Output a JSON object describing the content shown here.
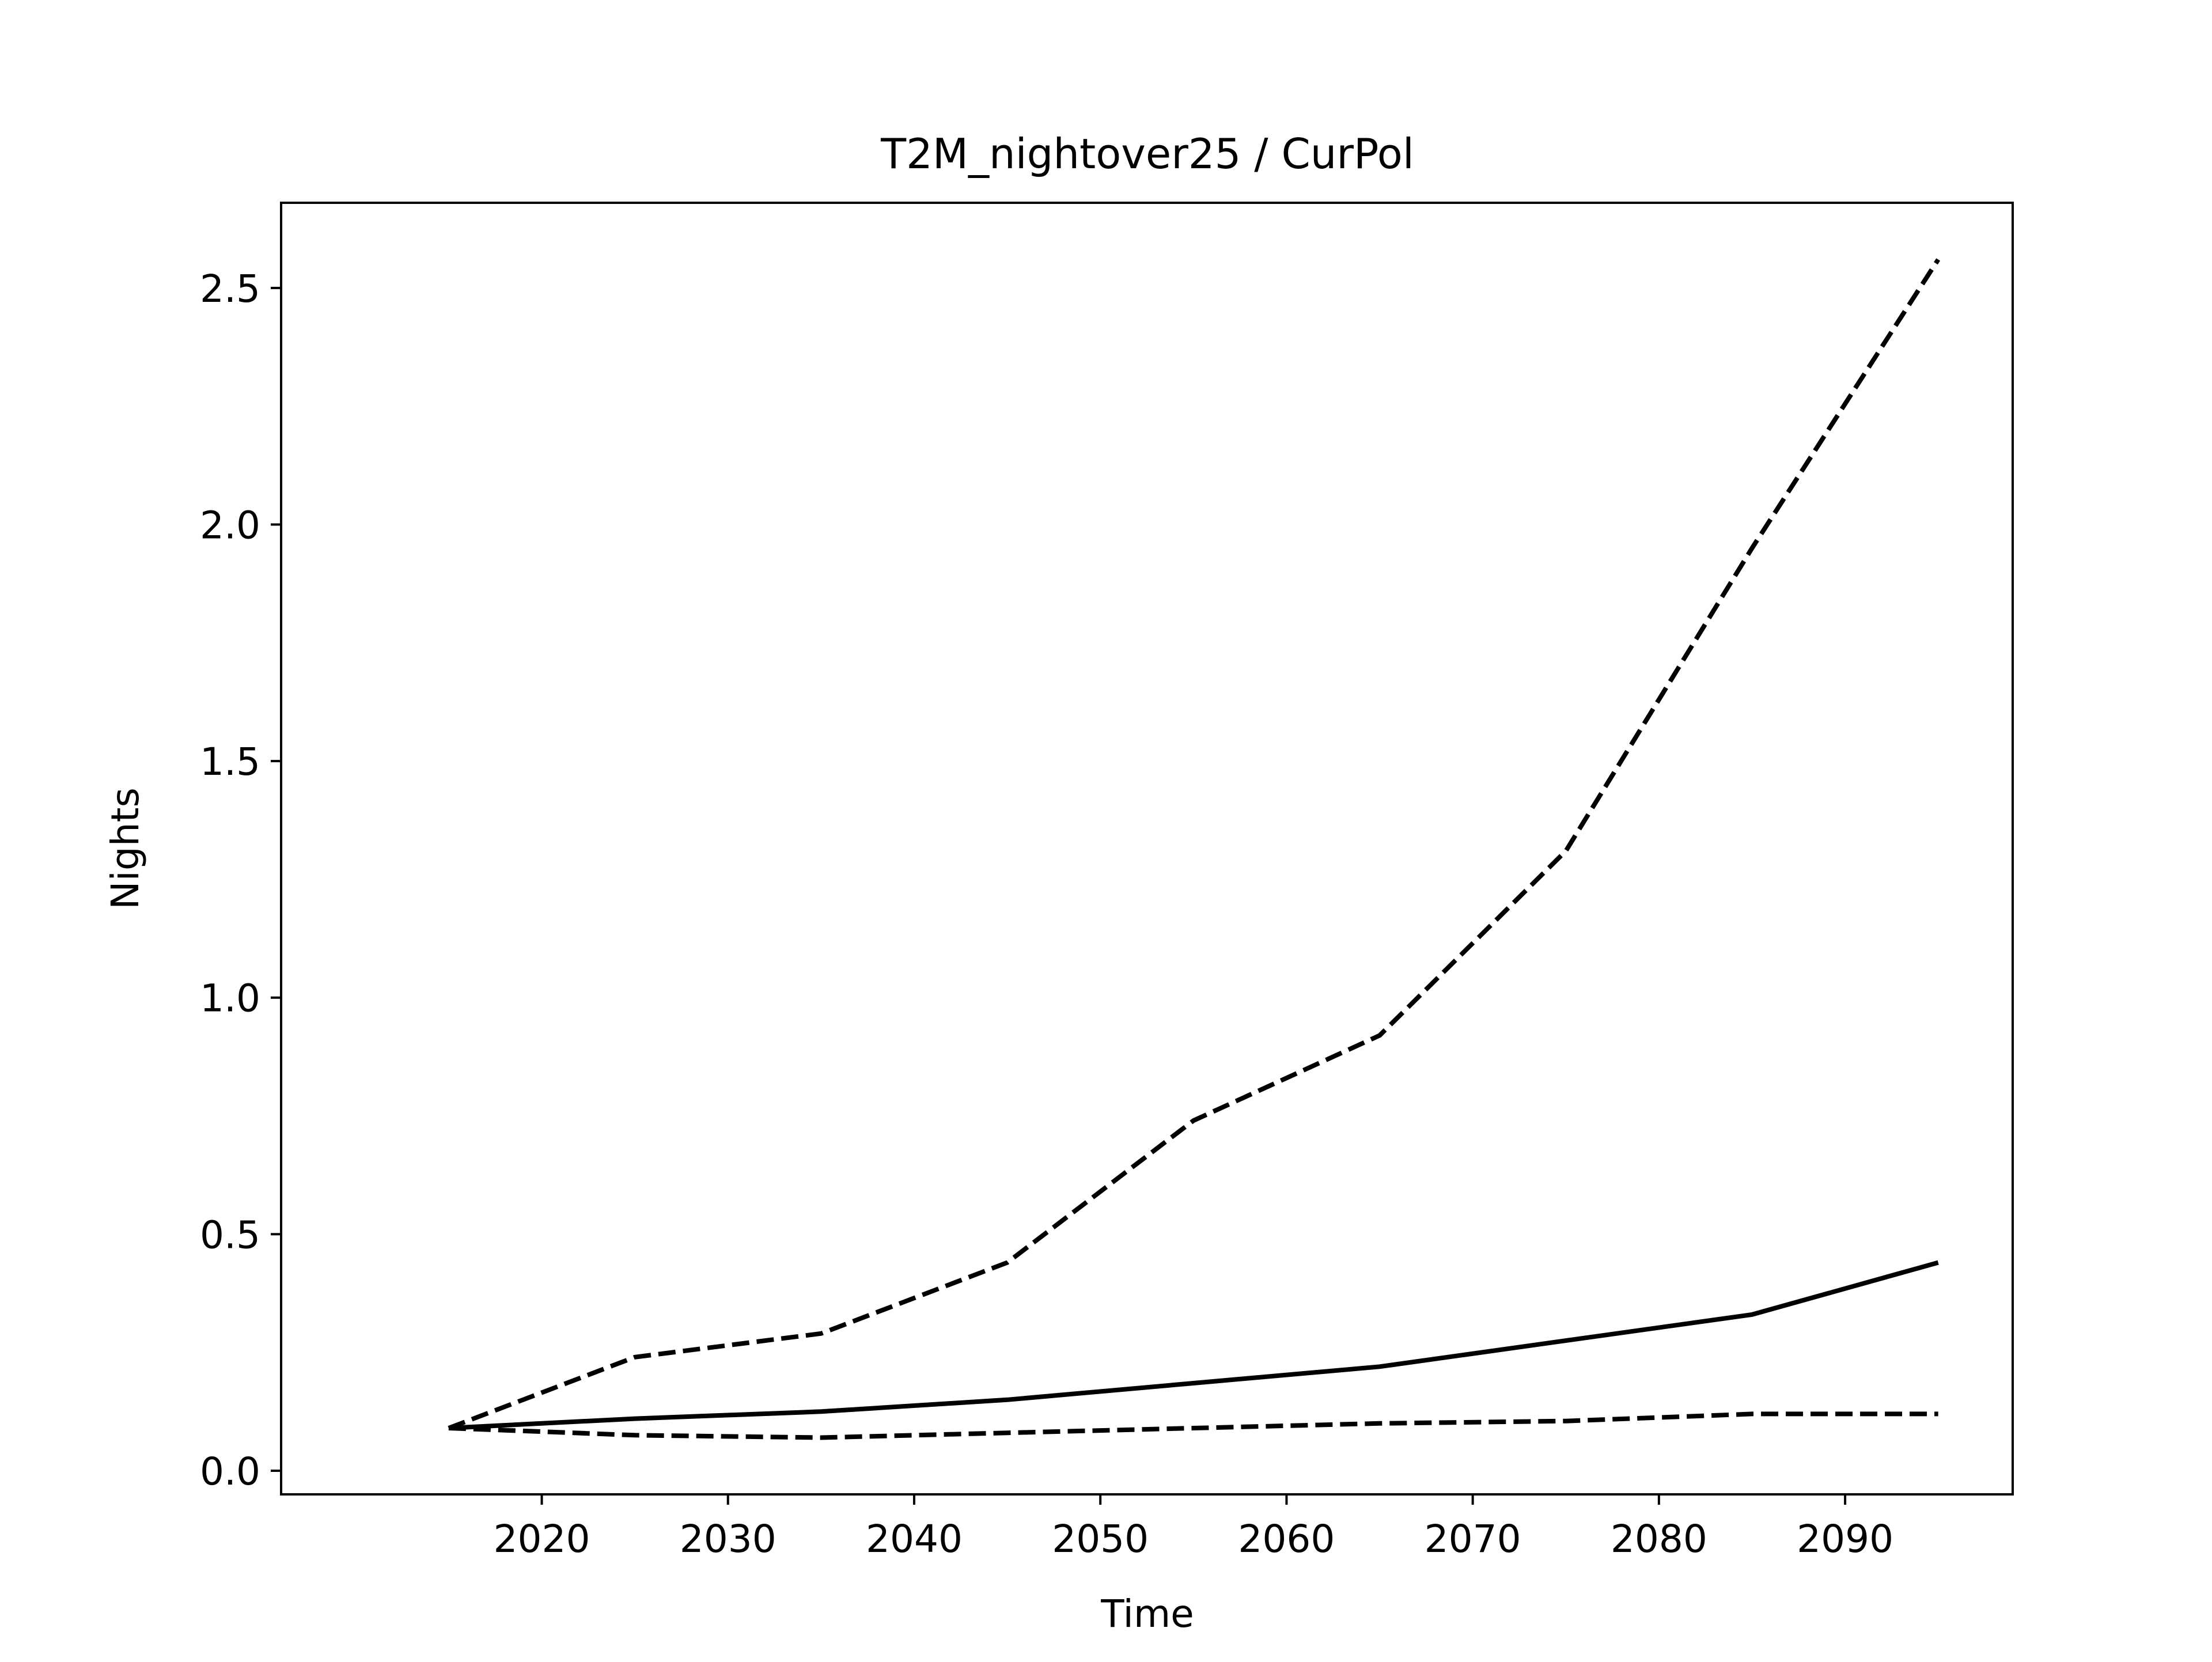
{
  "chart_data": {
    "type": "line",
    "title": "T2M_nightover25 / CurPol",
    "xlabel": "Time",
    "ylabel": "Nights",
    "x": [
      2015,
      2025,
      2035,
      2045,
      2055,
      2065,
      2075,
      2085,
      2095
    ],
    "xlim": [
      2006,
      2099
    ],
    "ylim": [
      -0.05,
      2.68
    ],
    "xticks": [
      2020,
      2030,
      2040,
      2050,
      2060,
      2070,
      2080,
      2090
    ],
    "yticks": [
      0.0,
      0.5,
      1.0,
      1.5,
      2.0,
      2.5
    ],
    "xtick_labels": [
      "2020",
      "2030",
      "2040",
      "2050",
      "2060",
      "2070",
      "2080",
      "2090"
    ],
    "ytick_labels": [
      "0.0",
      "0.5",
      "1.0",
      "1.5",
      "2.0",
      "2.5"
    ],
    "grid": false,
    "series": [
      {
        "style": "dashed",
        "color": "#000000",
        "values": [
          0.09,
          0.24,
          0.29,
          0.44,
          0.74,
          0.92,
          1.31,
          1.95,
          2.56
        ]
      },
      {
        "style": "solid",
        "color": "#000000",
        "values": [
          0.09,
          0.11,
          0.125,
          0.15,
          0.185,
          0.22,
          0.275,
          0.33,
          0.44
        ]
      },
      {
        "style": "dashed",
        "color": "#000000",
        "values": [
          0.09,
          0.075,
          0.07,
          0.08,
          0.09,
          0.1,
          0.105,
          0.12,
          0.12
        ]
      }
    ]
  }
}
